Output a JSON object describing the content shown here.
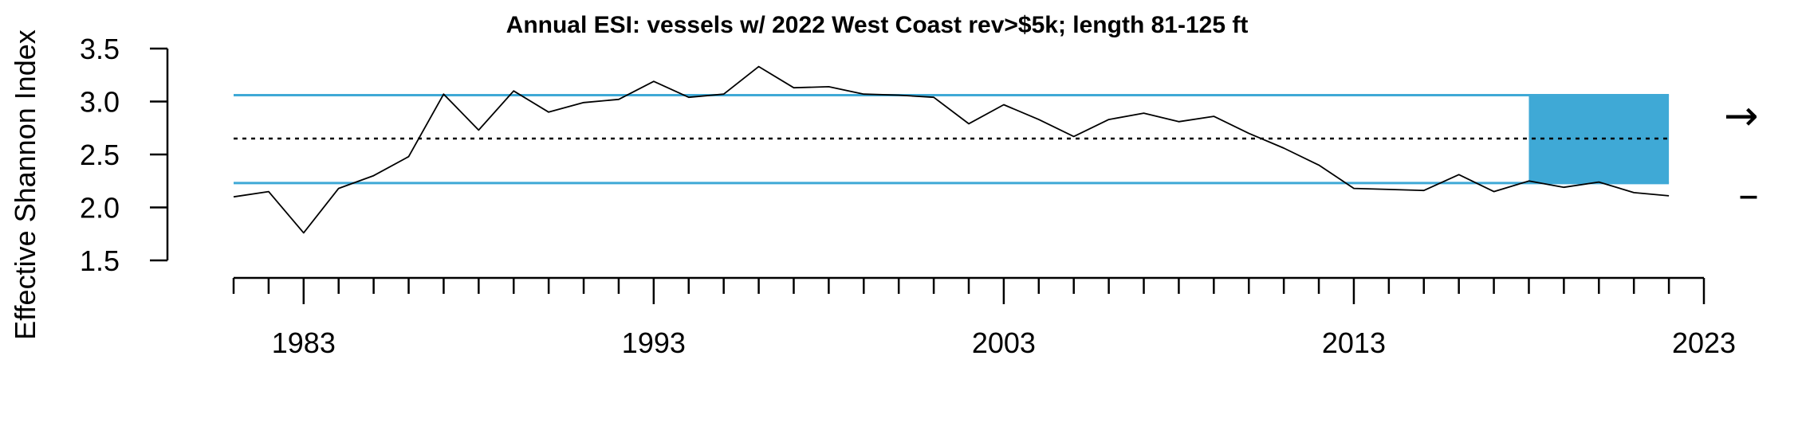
{
  "chart_data": {
    "type": "line",
    "title": "Annual ESI: vessels w/ 2022 West Coast rev>$5k; length 81-125 ft",
    "ylabel": "Effective Shannon Index",
    "xlabel": "",
    "xlim": [
      1981,
      2023
    ],
    "ylim": [
      1.5,
      3.5
    ],
    "y_ticks": [
      "1.5",
      "2.0",
      "2.5",
      "3.0",
      "3.5"
    ],
    "x_tick_labels": [
      "1983",
      "1993",
      "2003",
      "2013",
      "2023"
    ],
    "grid": false,
    "series": [
      {
        "x": [
          1981,
          1982,
          1983,
          1984,
          1985,
          1986,
          1987,
          1988,
          1989,
          1990,
          1991,
          1992,
          1993,
          1994,
          1995,
          1996,
          1997,
          1998,
          1999,
          2000,
          2001,
          2002,
          2003,
          2004,
          2005,
          2006,
          2007,
          2008,
          2009,
          2010,
          2011,
          2012,
          2013,
          2014,
          2015,
          2016,
          2017,
          2018,
          2019,
          2020,
          2021,
          2022
        ],
        "values": [
          2.1,
          2.15,
          1.76,
          2.18,
          2.3,
          2.48,
          3.07,
          2.73,
          3.1,
          2.9,
          2.99,
          3.02,
          3.19,
          3.04,
          3.07,
          3.33,
          3.13,
          3.14,
          3.07,
          3.06,
          3.04,
          2.79,
          2.97,
          2.83,
          2.67,
          2.83,
          2.89,
          2.81,
          2.86,
          2.7,
          2.56,
          2.4,
          2.18,
          2.17,
          2.16,
          2.31,
          2.15,
          2.25,
          2.19,
          2.24,
          2.14,
          2.11
        ],
        "color": "#000000"
      }
    ],
    "reference_lines": {
      "mean": 2.65,
      "upper": 3.06,
      "lower": 2.23,
      "mean_style": "dotted",
      "sd_color": "#3fa9d6"
    },
    "highlight": {
      "x_range": [
        2018,
        2022
      ],
      "y_range": [
        2.23,
        3.06
      ],
      "color": "#3fa9d6"
    },
    "trend_indicators": {
      "mean_trend": "→",
      "sd_trend": "–"
    }
  }
}
